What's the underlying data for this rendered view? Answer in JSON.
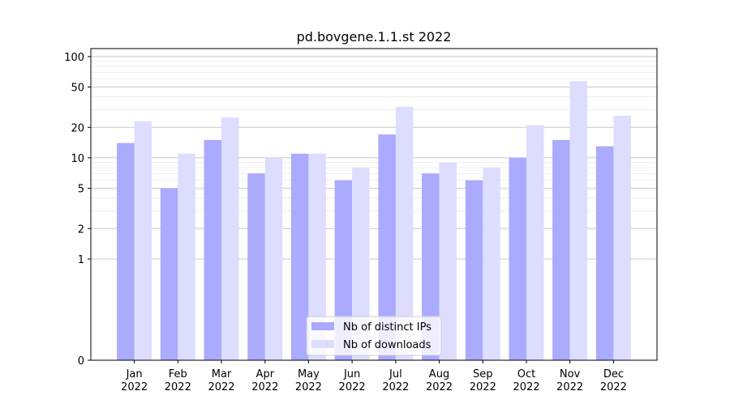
{
  "chart_data": {
    "type": "bar",
    "title": "pd.bovgene.1.1.st 2022",
    "xlabel": "",
    "ylabel": "",
    "yscale": "symlog",
    "ylim": [
      0,
      120
    ],
    "yticks": [
      0,
      1,
      2,
      5,
      10,
      20,
      50,
      100
    ],
    "ytick_labels": [
      "0",
      "1",
      "2",
      "5",
      "10",
      "20",
      "50",
      "100"
    ],
    "grid": true,
    "legend_position": "bottom-center",
    "categories": [
      {
        "month": "Jan",
        "year": "2022"
      },
      {
        "month": "Feb",
        "year": "2022"
      },
      {
        "month": "Mar",
        "year": "2022"
      },
      {
        "month": "Apr",
        "year": "2022"
      },
      {
        "month": "May",
        "year": "2022"
      },
      {
        "month": "Jun",
        "year": "2022"
      },
      {
        "month": "Jul",
        "year": "2022"
      },
      {
        "month": "Aug",
        "year": "2022"
      },
      {
        "month": "Sep",
        "year": "2022"
      },
      {
        "month": "Oct",
        "year": "2022"
      },
      {
        "month": "Nov",
        "year": "2022"
      },
      {
        "month": "Dec",
        "year": "2022"
      }
    ],
    "series": [
      {
        "name": "Nb of distinct IPs",
        "color": "#aaaaff",
        "values": [
          14,
          5,
          15,
          7,
          11,
          6,
          17,
          7,
          6,
          10,
          15,
          13
        ]
      },
      {
        "name": "Nb of downloads",
        "color": "#ddddff",
        "values": [
          23,
          11,
          25,
          10,
          11,
          8,
          32,
          9,
          8,
          21,
          57,
          26
        ]
      }
    ]
  }
}
